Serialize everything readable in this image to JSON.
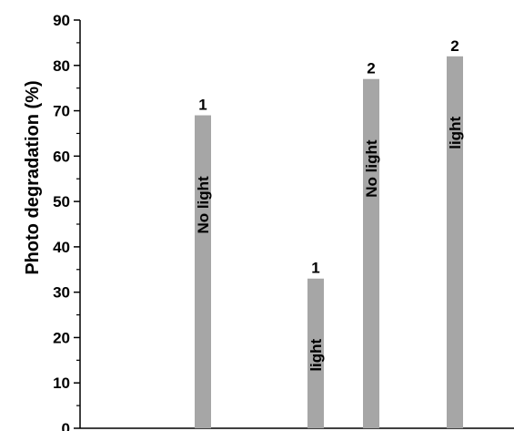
{
  "chart_data": {
    "type": "bar",
    "title": "",
    "xlabel": "",
    "ylabel": "Photo degradation (%)",
    "ylim": [
      0,
      90
    ],
    "yticks": [
      0,
      10,
      20,
      30,
      40,
      50,
      60,
      70,
      80,
      90
    ],
    "grid": false,
    "legend": "none",
    "bar_color": "#a6a6a6",
    "bars": [
      {
        "top_label": "1",
        "inner_label": "No light",
        "value": 69
      },
      {
        "top_label": "1",
        "inner_label": "light",
        "value": 33
      },
      {
        "top_label": "2",
        "inner_label": "No light",
        "value": 77
      },
      {
        "top_label": "2",
        "inner_label": "light",
        "value": 82
      }
    ]
  }
}
